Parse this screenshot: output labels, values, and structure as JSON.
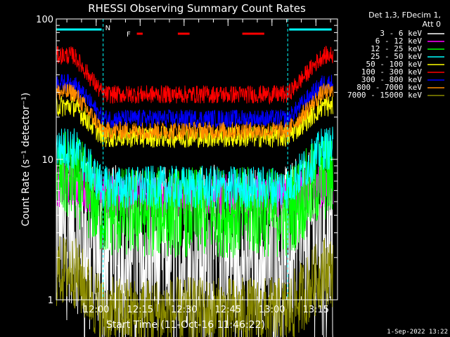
{
  "chart_data": {
    "type": "line",
    "title": "RHESSI Observing Summary Count Rates",
    "xlabel": "Start Time (11-Oct-16 11:46:22)",
    "ylabel": "Count Rate (s⁻¹ detector⁻¹)",
    "yscale": "log",
    "ylim": [
      1,
      100
    ],
    "xlim_minutes": [
      0,
      96
    ],
    "y_ticks": [
      {
        "value": 1,
        "label": "1"
      },
      {
        "value": 10,
        "label": "10"
      },
      {
        "value": 100,
        "label": "100"
      }
    ],
    "x_ticks": [
      {
        "minute": 13.63,
        "label": "12:00"
      },
      {
        "minute": 28.63,
        "label": "12:15"
      },
      {
        "minute": 43.63,
        "label": "12:30"
      },
      {
        "minute": 58.63,
        "label": "12:45"
      },
      {
        "minute": 73.63,
        "label": "13:00"
      },
      {
        "minute": 88.63,
        "label": "13:15"
      }
    ],
    "legend_header": [
      "Det 1,3, FDecim 1,",
      "Att 0"
    ],
    "legend_position": "right",
    "annotations": {
      "night_label": "N",
      "night_edges_minutes": [
        16,
        79
      ],
      "flare_label": "F",
      "flare_intervals_minutes": [
        [
          27.5,
          29.5
        ],
        [
          41.5,
          45.5
        ],
        [
          63.5,
          71
        ]
      ],
      "saa_intervals_minutes": [
        [
          0,
          15.5
        ],
        [
          79.5,
          94
        ]
      ]
    },
    "series": [
      {
        "name": "3 - 6 keV",
        "color": "#ffffff",
        "edge": 3.5,
        "mid": 2.4,
        "noise": 0.45
      },
      {
        "name": "6 - 12 keV",
        "color": "#ff00ff",
        "edge": 6.5,
        "mid": 5.5,
        "noise": 0.12
      },
      {
        "name": "12 - 25 keV",
        "color": "#00ff00",
        "edge": 7.5,
        "mid": 4.2,
        "noise": 0.25
      },
      {
        "name": "25 - 50 keV",
        "color": "#00ffff",
        "edge": 12,
        "mid": 6.3,
        "noise": 0.12
      },
      {
        "name": "50 - 100 keV",
        "color": "#ffff00",
        "edge": 24,
        "mid": 14.5,
        "noise": 0.06
      },
      {
        "name": "100 - 300 keV",
        "color": "#ff0000",
        "edge": 55,
        "mid": 29,
        "noise": 0.05
      },
      {
        "name": "300 - 800 keV",
        "color": "#0000ff",
        "edge": 35,
        "mid": 19.5,
        "noise": 0.05
      },
      {
        "name": "800 - 7000 keV",
        "color": "#ff8c00",
        "edge": 30,
        "mid": 16,
        "noise": 0.05
      },
      {
        "name": "7000 - 15000 keV",
        "color": "#8b8b00",
        "edge": 1.6,
        "mid": 0.8,
        "noise": 0.2
      }
    ]
  },
  "footer": {
    "timestamp": "1-Sep-2022 13:22"
  }
}
